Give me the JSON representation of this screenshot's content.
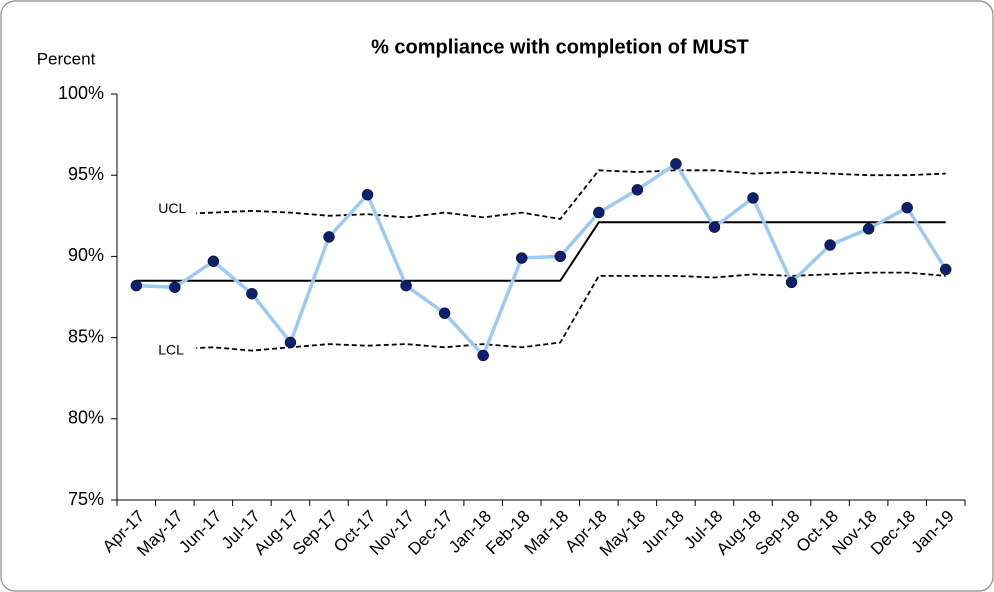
{
  "chart_data": {
    "type": "line",
    "title": "% compliance with completion of MUST",
    "y_label": "Percent",
    "categories": [
      "Apr-17",
      "May-17",
      "Jun-17",
      "Jul-17",
      "Aug-17",
      "Sep-17",
      "Oct-17",
      "Nov-17",
      "Dec-17",
      "Jan-18",
      "Feb-18",
      "Mar-18",
      "Apr-18",
      "May-18",
      "Jun-18",
      "Jul-18",
      "Aug-18",
      "Sep-18",
      "Oct-18",
      "Nov-18",
      "Dec-18",
      "Jan-19"
    ],
    "series": [
      {
        "name": "UCL",
        "color": "#000000",
        "dashed": true,
        "values": [
          92.9,
          92.6,
          92.7,
          92.8,
          92.7,
          92.5,
          92.6,
          92.4,
          92.7,
          92.4,
          92.7,
          92.3,
          95.3,
          95.2,
          95.3,
          95.3,
          95.1,
          95.2,
          95.1,
          95.0,
          95.0,
          95.1
        ]
      },
      {
        "name": "LCL",
        "color": "#000000",
        "dashed": true,
        "values": [
          84.2,
          84.3,
          84.4,
          84.2,
          84.4,
          84.6,
          84.5,
          84.6,
          84.4,
          84.6,
          84.4,
          84.7,
          88.8,
          88.8,
          88.8,
          88.7,
          88.9,
          88.8,
          88.9,
          89.0,
          89.0,
          88.8
        ]
      },
      {
        "color": "#000000",
        "values": [
          88.5,
          88.5,
          88.5,
          88.5,
          88.5,
          88.5,
          88.5,
          88.5,
          88.5,
          88.5,
          88.5,
          88.5,
          92.1,
          92.1,
          92.1,
          92.1,
          92.1,
          92.1,
          92.1,
          92.1,
          92.1,
          92.1
        ]
      },
      {
        "color": "#9ccaf2",
        "marker_color": "#0f1f6e",
        "markers": true,
        "values": [
          88.2,
          88.1,
          89.7,
          87.7,
          84.7,
          91.2,
          93.8,
          88.2,
          86.5,
          83.9,
          89.9,
          90.0,
          92.7,
          94.1,
          95.7,
          91.8,
          93.6,
          88.4,
          90.7,
          91.7,
          93.0,
          89.2
        ]
      }
    ],
    "ylim": [
      75,
      100
    ],
    "yticks": [
      {
        "value": 75,
        "label": "75%"
      },
      {
        "value": 80,
        "label": "80%"
      },
      {
        "value": 85,
        "label": "85%"
      },
      {
        "value": 90,
        "label": "90%"
      },
      {
        "value": 95,
        "label": "95%"
      },
      {
        "value": 100,
        "label": "100%"
      }
    ]
  }
}
